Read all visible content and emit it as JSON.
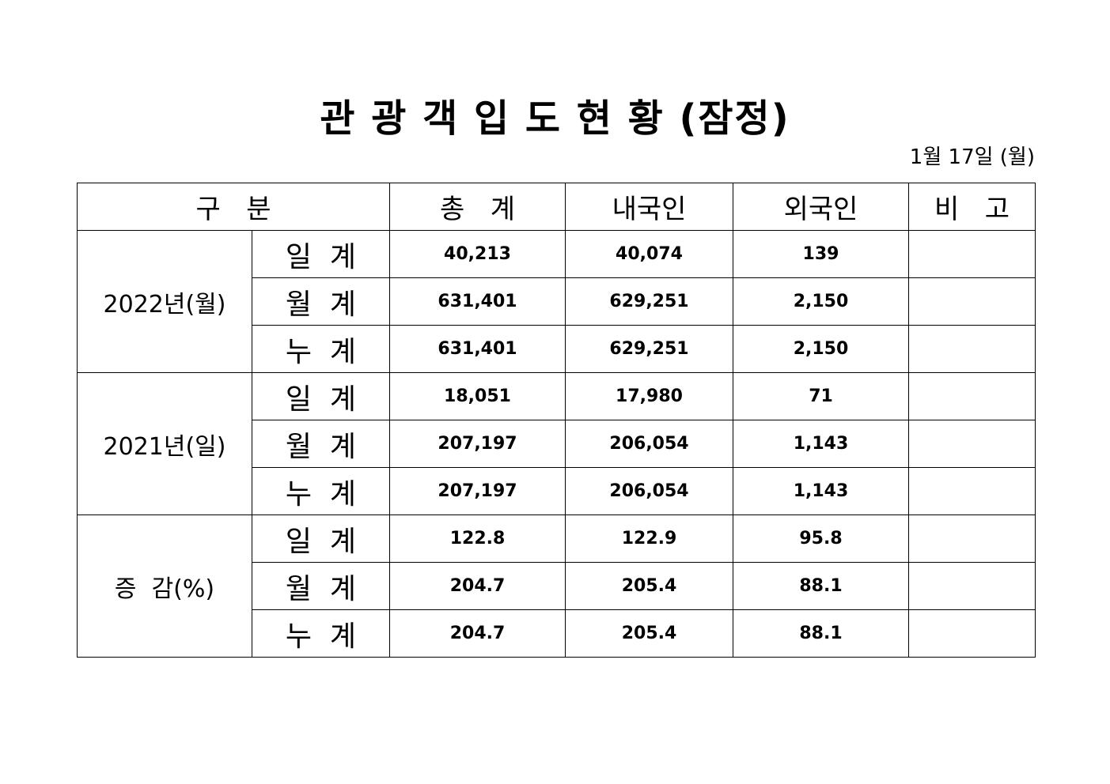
{
  "header": {
    "title": "관 광 객 입 도 현 황 (잠정)",
    "date": "1월 17일 (월)"
  },
  "table": {
    "columns": [
      "구   분",
      "총   계",
      "내국인",
      "외국인",
      "비   고"
    ],
    "groups": [
      {
        "label": "2022년(월)",
        "rows": [
          [
            "일  계",
            "40,213",
            "40,074",
            "139"
          ],
          [
            "월  계",
            "631,401",
            "629,251",
            "2,150"
          ],
          [
            "누  계",
            "631,401",
            "629,251",
            "2,150"
          ]
        ]
      },
      {
        "label": "2021년(일)",
        "rows": [
          [
            "일  계",
            "18,051",
            "17,980",
            "71"
          ],
          [
            "월  계",
            "207,197",
            "206,054",
            "1,143"
          ],
          [
            "누  계",
            "207,197",
            "206,054",
            "1,143"
          ]
        ]
      },
      {
        "label": "증  감(%)",
        "rows": [
          [
            "일  계",
            "122.8",
            "122.9",
            "95.8"
          ],
          [
            "월  계",
            "204.7",
            "205.4",
            "88.1"
          ],
          [
            "누  계",
            "204.7",
            "205.4",
            "88.1"
          ]
        ]
      }
    ]
  }
}
